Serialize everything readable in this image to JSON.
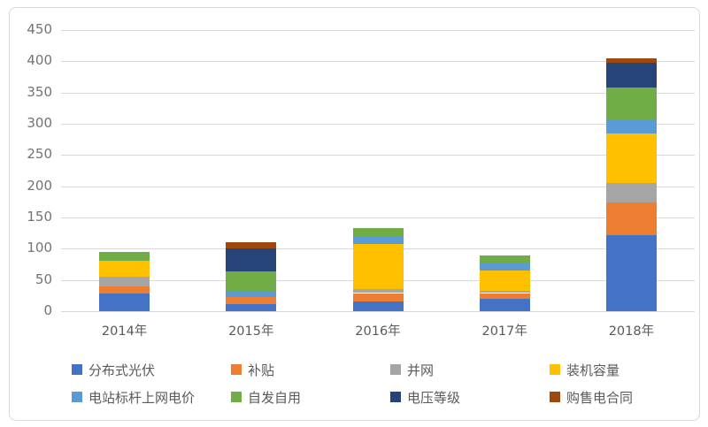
{
  "chart_data": {
    "type": "bar",
    "stacked": true,
    "title": "",
    "categories": [
      "2014年",
      "2015年",
      "2016年",
      "2017年",
      "2018年"
    ],
    "series": [
      {
        "name": "分布式光伏",
        "color": "#4472C4",
        "values": [
          28,
          11,
          16,
          20,
          121
        ]
      },
      {
        "name": "补贴",
        "color": "#ED7D31",
        "values": [
          11,
          12,
          13,
          9,
          53
        ]
      },
      {
        "name": "并网",
        "color": "#A5A5A5",
        "values": [
          16,
          0,
          7,
          3,
          31
        ]
      },
      {
        "name": "装机容量",
        "color": "#FFC000",
        "values": [
          26,
          0,
          71,
          33,
          80
        ]
      },
      {
        "name": "电站标杆上网电价",
        "color": "#5B9BD5",
        "values": [
          0,
          9,
          13,
          11,
          20
        ]
      },
      {
        "name": "自发自用",
        "color": "#70AD47",
        "values": [
          14,
          32,
          13,
          13,
          53
        ]
      },
      {
        "name": "电压等级",
        "color": "#264478",
        "values": [
          0,
          37,
          0,
          0,
          39
        ]
      },
      {
        "name": "购售电合同",
        "color": "#9E480E",
        "values": [
          0,
          9,
          0,
          0,
          8
        ]
      }
    ],
    "totals": [
      95,
      110,
      133,
      89,
      405
    ],
    "ylim": [
      0,
      450
    ],
    "ytick_step": 50,
    "yticks": [
      "0",
      "50",
      "100",
      "150",
      "200",
      "250",
      "300",
      "350",
      "400",
      "450"
    ],
    "grid": true,
    "gridline_color": "#d9d9d9",
    "axis_label_color": "#737373",
    "category_label_color": "#595959",
    "legend_position": "bottom",
    "legend_rows": 2,
    "legend_order": [
      "分布式光伏",
      "补贴",
      "并网",
      "装机容量",
      "电站标杆上网电价",
      "自发自用",
      "电压等级",
      "购售电合同"
    ]
  }
}
